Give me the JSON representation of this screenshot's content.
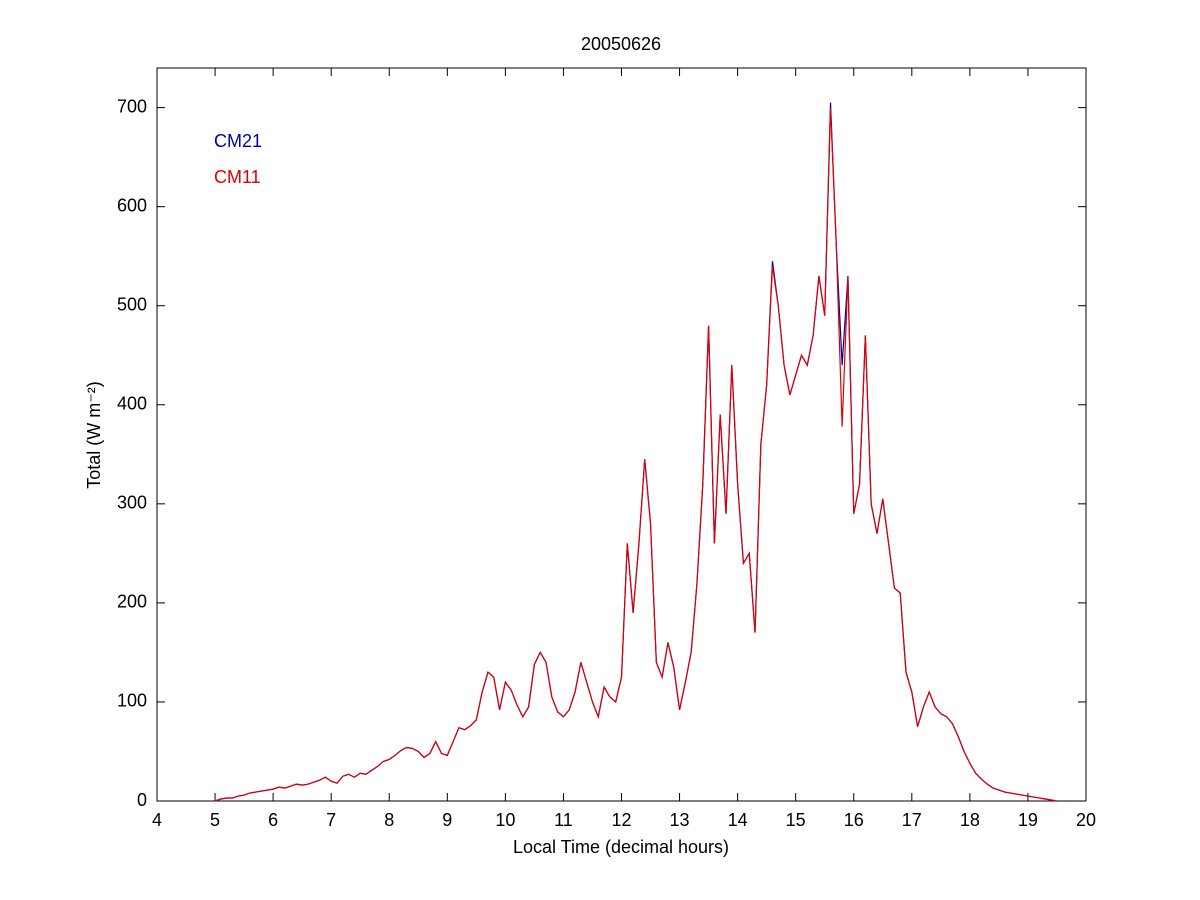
{
  "chart_data": {
    "type": "line",
    "title": "20050626",
    "xlabel": "Local Time (decimal hours)",
    "ylabel": "Total (W m⁻²)",
    "xlim": [
      4,
      20
    ],
    "xticks": [
      4,
      5,
      6,
      7,
      8,
      9,
      10,
      11,
      12,
      13,
      14,
      15,
      16,
      17,
      18,
      19,
      20
    ],
    "ylim": [
      0,
      740
    ],
    "yticks": [
      0,
      100,
      200,
      300,
      400,
      500,
      600,
      700
    ],
    "legend": "upper left",
    "x": [
      5,
      5.1,
      5.2,
      5.3,
      5.4,
      5.5,
      5.6,
      5.7,
      5.8,
      5.9,
      6,
      6.1,
      6.2,
      6.3,
      6.4,
      6.5,
      6.6,
      6.7,
      6.8,
      6.9,
      7,
      7.1,
      7.2,
      7.3,
      7.4,
      7.5,
      7.6,
      7.7,
      7.8,
      7.9,
      8,
      8.1,
      8.2,
      8.3,
      8.4,
      8.5,
      8.6,
      8.7,
      8.8,
      8.9,
      9,
      9.1,
      9.2,
      9.3,
      9.4,
      9.5,
      9.6,
      9.7,
      9.8,
      9.9,
      10,
      10.1,
      10.2,
      10.3,
      10.4,
      10.5,
      10.6,
      10.7,
      10.8,
      10.9,
      11,
      11.1,
      11.2,
      11.3,
      11.4,
      11.5,
      11.6,
      11.7,
      11.8,
      11.9,
      12,
      12.1,
      12.2,
      12.3,
      12.4,
      12.5,
      12.6,
      12.7,
      12.8,
      12.9,
      13,
      13.1,
      13.2,
      13.3,
      13.4,
      13.5,
      13.6,
      13.7,
      13.8,
      13.9,
      14,
      14.1,
      14.2,
      14.3,
      14.4,
      14.5,
      14.6,
      14.7,
      14.8,
      14.9,
      15,
      15.1,
      15.2,
      15.3,
      15.4,
      15.5,
      15.6,
      15.7,
      15.8,
      15.9,
      16,
      16.1,
      16.2,
      16.3,
      16.4,
      16.5,
      16.6,
      16.7,
      16.8,
      16.9,
      17,
      17.1,
      17.2,
      17.3,
      17.4,
      17.5,
      17.6,
      17.7,
      17.8,
      17.9,
      18,
      18.1,
      18.2,
      18.3,
      18.4,
      18.5,
      18.6,
      18.7,
      18.8,
      18.9,
      19,
      19.1,
      19.2,
      19.3,
      19.4,
      19.5
    ],
    "series": [
      {
        "name": "CM21",
        "color": "#0000a8",
        "values": [
          0,
          2,
          3,
          3,
          5,
          6,
          8,
          9,
          10,
          11,
          12,
          14,
          13,
          15,
          17,
          16,
          17,
          19,
          21,
          24,
          20,
          18,
          25,
          27,
          24,
          28,
          27,
          31,
          35,
          40,
          42,
          46,
          51,
          54,
          53,
          50,
          44,
          48,
          60,
          48,
          46,
          60,
          74,
          72,
          76,
          82,
          110,
          130,
          125,
          92,
          120,
          112,
          97,
          85,
          95,
          138,
          150,
          140,
          105,
          90,
          85,
          92,
          110,
          140,
          120,
          100,
          85,
          115,
          105,
          100,
          125,
          260,
          190,
          260,
          345,
          280,
          140,
          125,
          160,
          135,
          92,
          120,
          150,
          220,
          320,
          480,
          260,
          390,
          290,
          440,
          320,
          240,
          250,
          170,
          360,
          420,
          545,
          500,
          440,
          410,
          430,
          450,
          440,
          470,
          530,
          490,
          705,
          560,
          440,
          530,
          290,
          320,
          470,
          300,
          270,
          305,
          260,
          215,
          210,
          130,
          110,
          75,
          95,
          110,
          95,
          88,
          85,
          78,
          65,
          50,
          38,
          28,
          22,
          17,
          13,
          11,
          9,
          8,
          7,
          6,
          5,
          4,
          3,
          2,
          1,
          0
        ]
      },
      {
        "name": "CM11",
        "color": "#e00000",
        "values": [
          0,
          2,
          3,
          3,
          5,
          6,
          8,
          9,
          10,
          11,
          12,
          14,
          13,
          15,
          17,
          16,
          17,
          19,
          21,
          24,
          20,
          18,
          25,
          27,
          24,
          28,
          27,
          31,
          35,
          40,
          42,
          46,
          51,
          54,
          53,
          50,
          44,
          48,
          60,
          48,
          46,
          60,
          74,
          72,
          76,
          82,
          110,
          130,
          125,
          92,
          120,
          112,
          97,
          85,
          95,
          138,
          150,
          140,
          105,
          90,
          85,
          92,
          110,
          140,
          120,
          100,
          85,
          115,
          105,
          100,
          125,
          260,
          190,
          260,
          345,
          280,
          140,
          125,
          160,
          135,
          92,
          120,
          150,
          220,
          320,
          480,
          260,
          390,
          290,
          440,
          320,
          240,
          250,
          170,
          360,
          420,
          540,
          500,
          440,
          410,
          430,
          450,
          440,
          470,
          530,
          490,
          700,
          560,
          378,
          530,
          290,
          320,
          470,
          300,
          270,
          305,
          260,
          215,
          210,
          130,
          110,
          75,
          95,
          110,
          95,
          88,
          85,
          78,
          65,
          50,
          38,
          28,
          22,
          17,
          13,
          11,
          9,
          8,
          7,
          6,
          5,
          4,
          3,
          2,
          1,
          0
        ]
      }
    ]
  }
}
